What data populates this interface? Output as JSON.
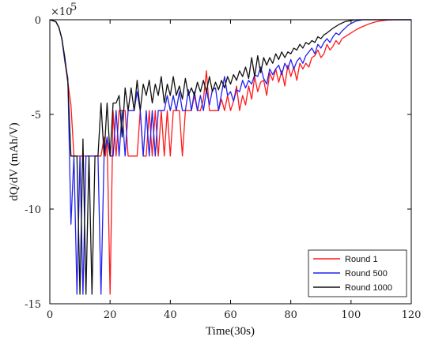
{
  "chart_data": {
    "type": "line",
    "xlabel": "Time(30s)",
    "ylabel": "dQ/dV (mAh/V)",
    "y_exponent_label": "×10",
    "y_exponent_power": "5",
    "xlim": [
      0,
      120
    ],
    "ylim": [
      -15,
      0
    ],
    "xticks": [
      0,
      20,
      40,
      60,
      80,
      100,
      120
    ],
    "yticks": [
      0,
      -5,
      -10,
      -15
    ],
    "grid": false,
    "legend_position": "bottom-right",
    "series": [
      {
        "name": "Round 1",
        "color": "#ff1a1a",
        "points": [
          [
            0,
            0
          ],
          [
            1,
            -0.05
          ],
          [
            2,
            -0.1
          ],
          [
            3,
            -0.4
          ],
          [
            4,
            -1.0
          ],
          [
            5,
            -2.2
          ],
          [
            6,
            -3.3
          ],
          [
            7,
            -4.5
          ],
          [
            8,
            -7.2
          ],
          [
            9,
            -7.2
          ],
          [
            10,
            -7.2
          ],
          [
            11,
            -7.2
          ],
          [
            12,
            -7.2
          ],
          [
            13,
            -7.2
          ],
          [
            14,
            -7.2
          ],
          [
            15,
            -7.2
          ],
          [
            16,
            -7.2
          ],
          [
            17,
            -7.2
          ],
          [
            18,
            -6.2
          ],
          [
            18.5,
            -7.2
          ],
          [
            19,
            -6.2
          ],
          [
            20,
            -14.5
          ],
          [
            21,
            -4.8
          ],
          [
            22,
            -7.2
          ],
          [
            23,
            -4.8
          ],
          [
            24,
            -4.8
          ],
          [
            25,
            -4.8
          ],
          [
            26,
            -7.2
          ],
          [
            27,
            -7.2
          ],
          [
            28,
            -7.2
          ],
          [
            29,
            -7.2
          ],
          [
            30,
            -4.8
          ],
          [
            31,
            -7.2
          ],
          [
            32,
            -7.2
          ],
          [
            33,
            -4.8
          ],
          [
            34,
            -7.2
          ],
          [
            35,
            -4.8
          ],
          [
            36,
            -7.2
          ],
          [
            37,
            -4.8
          ],
          [
            38,
            -7.2
          ],
          [
            39,
            -4.8
          ],
          [
            40,
            -7.2
          ],
          [
            41,
            -4.8
          ],
          [
            42,
            -4.8
          ],
          [
            43,
            -4.8
          ],
          [
            44,
            -7.2
          ],
          [
            45,
            -4.8
          ],
          [
            46,
            -4.8
          ],
          [
            47,
            -4.8
          ],
          [
            48,
            -4.0
          ],
          [
            49,
            -4.8
          ],
          [
            50,
            -4.8
          ],
          [
            51,
            -4.2
          ],
          [
            52,
            -2.7
          ],
          [
            53,
            -4.8
          ],
          [
            54,
            -4.8
          ],
          [
            55,
            -4.8
          ],
          [
            56,
            -4.8
          ],
          [
            57,
            -4.2
          ],
          [
            58,
            -4.8
          ],
          [
            59,
            -4.0
          ],
          [
            60,
            -4.8
          ],
          [
            61,
            -4.3
          ],
          [
            62,
            -3.5
          ],
          [
            63,
            -4.8
          ],
          [
            64,
            -4.0
          ],
          [
            65,
            -4.5
          ],
          [
            66,
            -3.5
          ],
          [
            67,
            -4.2
          ],
          [
            68,
            -3.0
          ],
          [
            69,
            -3.8
          ],
          [
            70,
            -3.3
          ],
          [
            71,
            -3.2
          ],
          [
            72,
            -4.0
          ],
          [
            73,
            -2.8
          ],
          [
            74,
            -3.2
          ],
          [
            75,
            -2.6
          ],
          [
            76,
            -3.3
          ],
          [
            77,
            -2.7
          ],
          [
            78,
            -3.5
          ],
          [
            79,
            -2.4
          ],
          [
            80,
            -3.0
          ],
          [
            81,
            -2.5
          ],
          [
            82,
            -3.2
          ],
          [
            83,
            -2.3
          ],
          [
            84,
            -2.6
          ],
          [
            85,
            -2.3
          ],
          [
            86,
            -2.5
          ],
          [
            87,
            -2.0
          ],
          [
            88,
            -1.9
          ],
          [
            89,
            -1.6
          ],
          [
            90,
            -2.0
          ],
          [
            91,
            -1.8
          ],
          [
            92,
            -1.3
          ],
          [
            93,
            -1.6
          ],
          [
            94,
            -1.4
          ],
          [
            95,
            -1.1
          ],
          [
            96,
            -1.3
          ],
          [
            97,
            -1.0
          ],
          [
            98,
            -0.9
          ],
          [
            100,
            -0.7
          ],
          [
            102,
            -0.5
          ],
          [
            104,
            -0.35
          ],
          [
            106,
            -0.22
          ],
          [
            108,
            -0.12
          ],
          [
            110,
            -0.06
          ],
          [
            112,
            -0.02
          ],
          [
            115,
            0
          ],
          [
            120,
            0
          ]
        ]
      },
      {
        "name": "Round 500",
        "color": "#2222ee",
        "points": [
          [
            0,
            0
          ],
          [
            1,
            -0.05
          ],
          [
            2,
            -0.1
          ],
          [
            3,
            -0.4
          ],
          [
            4,
            -1.0
          ],
          [
            5,
            -2.2
          ],
          [
            6,
            -3.1
          ],
          [
            7,
            -10.8
          ],
          [
            8,
            -7.2
          ],
          [
            9,
            -14.5
          ],
          [
            10,
            -7.2
          ],
          [
            11,
            -14.5
          ],
          [
            12,
            -7.2
          ],
          [
            13,
            -7.2
          ],
          [
            14,
            -7.2
          ],
          [
            15,
            -7.2
          ],
          [
            16,
            -7.2
          ],
          [
            17,
            -14.5
          ],
          [
            18,
            -7.2
          ],
          [
            19,
            -6.2
          ],
          [
            20,
            -7.2
          ],
          [
            21,
            -7.2
          ],
          [
            22,
            -4.8
          ],
          [
            23,
            -7.2
          ],
          [
            24,
            -4.8
          ],
          [
            25,
            -7.2
          ],
          [
            26,
            -4.8
          ],
          [
            27,
            -4.8
          ],
          [
            28,
            -4.8
          ],
          [
            29,
            -3.8
          ],
          [
            30,
            -4.8
          ],
          [
            31,
            -7.2
          ],
          [
            32,
            -4.8
          ],
          [
            33,
            -7.2
          ],
          [
            34,
            -4.8
          ],
          [
            35,
            -7.2
          ],
          [
            36,
            -4.8
          ],
          [
            37,
            -4.8
          ],
          [
            38,
            -4.8
          ],
          [
            39,
            -4.0
          ],
          [
            40,
            -4.8
          ],
          [
            41,
            -4.0
          ],
          [
            42,
            -4.8
          ],
          [
            43,
            -3.8
          ],
          [
            44,
            -4.8
          ],
          [
            45,
            -4.8
          ],
          [
            46,
            -3.7
          ],
          [
            47,
            -4.8
          ],
          [
            48,
            -3.8
          ],
          [
            49,
            -4.8
          ],
          [
            50,
            -4.0
          ],
          [
            51,
            -4.8
          ],
          [
            52,
            -3.7
          ],
          [
            53,
            -4.5
          ],
          [
            54,
            -3.7
          ],
          [
            55,
            -3.6
          ],
          [
            56,
            -4.8
          ],
          [
            57,
            -3.9
          ],
          [
            58,
            -3.0
          ],
          [
            59,
            -4.0
          ],
          [
            60,
            -3.8
          ],
          [
            61,
            -4.3
          ],
          [
            62,
            -3.7
          ],
          [
            63,
            -3.8
          ],
          [
            64,
            -3.2
          ],
          [
            65,
            -3.6
          ],
          [
            66,
            -3.2
          ],
          [
            67,
            -3.4
          ],
          [
            68,
            -2.9
          ],
          [
            69,
            -3.0
          ],
          [
            70,
            -2.5
          ],
          [
            71,
            -3.1
          ],
          [
            72,
            -3.4
          ],
          [
            73,
            -2.6
          ],
          [
            74,
            -2.9
          ],
          [
            75,
            -2.6
          ],
          [
            76,
            -2.4
          ],
          [
            77,
            -2.9
          ],
          [
            78,
            -2.3
          ],
          [
            79,
            -2.6
          ],
          [
            80,
            -2.1
          ],
          [
            81,
            -2.6
          ],
          [
            82,
            -2.2
          ],
          [
            83,
            -2.0
          ],
          [
            84,
            -2.3
          ],
          [
            85,
            -1.9
          ],
          [
            86,
            -1.7
          ],
          [
            87,
            -1.5
          ],
          [
            88,
            -1.8
          ],
          [
            89,
            -1.3
          ],
          [
            90,
            -1.5
          ],
          [
            91,
            -1.2
          ],
          [
            92,
            -1.0
          ],
          [
            93,
            -1.2
          ],
          [
            94,
            -0.9
          ],
          [
            95,
            -0.7
          ],
          [
            96,
            -0.8
          ],
          [
            97,
            -0.6
          ],
          [
            98,
            -0.45
          ],
          [
            99,
            -0.3
          ],
          [
            100,
            -0.2
          ],
          [
            101,
            -0.12
          ],
          [
            102,
            -0.06
          ],
          [
            104,
            0
          ],
          [
            120,
            0
          ]
        ]
      },
      {
        "name": "Round 1000",
        "color": "#111111",
        "points": [
          [
            0,
            0
          ],
          [
            1,
            -0.05
          ],
          [
            2,
            -0.1
          ],
          [
            3,
            -0.4
          ],
          [
            4,
            -1.0
          ],
          [
            5,
            -2.0
          ],
          [
            6,
            -3.3
          ],
          [
            7,
            -7.2
          ],
          [
            8,
            -7.2
          ],
          [
            9,
            -7.2
          ],
          [
            10,
            -14.5
          ],
          [
            11,
            -6.3
          ],
          [
            12,
            -14.5
          ],
          [
            13,
            -7.2
          ],
          [
            14,
            -14.5
          ],
          [
            15,
            -7.2
          ],
          [
            16,
            -7.2
          ],
          [
            17,
            -4.4
          ],
          [
            18,
            -7.2
          ],
          [
            19,
            -4.4
          ],
          [
            20,
            -7.2
          ],
          [
            21,
            -4.4
          ],
          [
            22,
            -4.4
          ],
          [
            23,
            -4.0
          ],
          [
            24,
            -6.2
          ],
          [
            25,
            -3.6
          ],
          [
            26,
            -4.8
          ],
          [
            27,
            -3.6
          ],
          [
            28,
            -4.8
          ],
          [
            29,
            -3.2
          ],
          [
            30,
            -4.8
          ],
          [
            31,
            -3.4
          ],
          [
            32,
            -4.0
          ],
          [
            33,
            -3.2
          ],
          [
            34,
            -4.4
          ],
          [
            35,
            -3.4
          ],
          [
            36,
            -4.0
          ],
          [
            37,
            -3.0
          ],
          [
            38,
            -4.4
          ],
          [
            39,
            -3.4
          ],
          [
            40,
            -4.0
          ],
          [
            41,
            -3.0
          ],
          [
            42,
            -4.0
          ],
          [
            43,
            -3.5
          ],
          [
            44,
            -4.2
          ],
          [
            45,
            -3.1
          ],
          [
            46,
            -4.0
          ],
          [
            47,
            -3.6
          ],
          [
            48,
            -4.0
          ],
          [
            49,
            -3.3
          ],
          [
            50,
            -3.8
          ],
          [
            51,
            -3.2
          ],
          [
            52,
            -3.8
          ],
          [
            53,
            -3.0
          ],
          [
            54,
            -3.8
          ],
          [
            55,
            -3.3
          ],
          [
            56,
            -3.7
          ],
          [
            57,
            -3.2
          ],
          [
            58,
            -3.6
          ],
          [
            59,
            -3.0
          ],
          [
            60,
            -3.4
          ],
          [
            61,
            -2.9
          ],
          [
            62,
            -3.2
          ],
          [
            63,
            -2.7
          ],
          [
            64,
            -3.0
          ],
          [
            65,
            -2.5
          ],
          [
            66,
            -3.1
          ],
          [
            67,
            -2.0
          ],
          [
            68,
            -3.0
          ],
          [
            69,
            -1.9
          ],
          [
            70,
            -2.8
          ],
          [
            71,
            -2.0
          ],
          [
            72,
            -2.4
          ],
          [
            73,
            -2.0
          ],
          [
            74,
            -2.3
          ],
          [
            75,
            -1.8
          ],
          [
            76,
            -2.1
          ],
          [
            77,
            -1.7
          ],
          [
            78,
            -2.0
          ],
          [
            79,
            -1.7
          ],
          [
            80,
            -1.8
          ],
          [
            81,
            -1.5
          ],
          [
            82,
            -1.6
          ],
          [
            83,
            -1.3
          ],
          [
            84,
            -1.5
          ],
          [
            85,
            -1.2
          ],
          [
            86,
            -1.3
          ],
          [
            87,
            -1.1
          ],
          [
            88,
            -1.2
          ],
          [
            89,
            -0.9
          ],
          [
            90,
            -1.0
          ],
          [
            91,
            -0.8
          ],
          [
            92,
            -0.7
          ],
          [
            94,
            -0.45
          ],
          [
            96,
            -0.25
          ],
          [
            98,
            -0.1
          ],
          [
            100,
            -0.04
          ],
          [
            102,
            0
          ],
          [
            120,
            0
          ]
        ]
      }
    ]
  }
}
